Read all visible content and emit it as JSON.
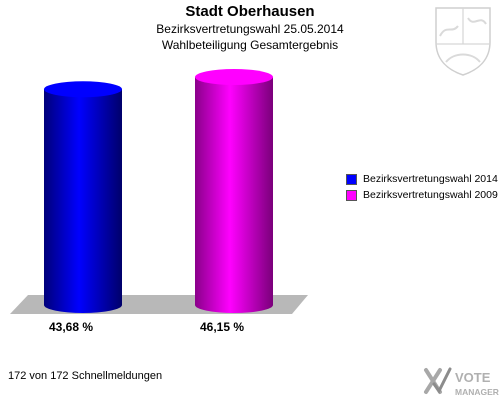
{
  "header": {
    "title": "Stadt Oberhausen",
    "subtitle": "Bezirksvertretungswahl 25.05.2014",
    "subtitle2": "Wahlbeteiligung Gesamtergebnis"
  },
  "chart_data": {
    "type": "bar",
    "title": "Stadt Oberhausen",
    "categories": [
      "Bezirksvertretungswahl 2014",
      "Bezirksvertretungswahl 2009"
    ],
    "values": [
      43.68,
      46.15
    ],
    "value_labels": [
      "43,68 %",
      "46,15 %"
    ],
    "colors": [
      "#0000ff",
      "#ff00ff"
    ],
    "ylim": [
      0,
      50
    ],
    "grid": false,
    "legend": "right",
    "xlabel": "",
    "ylabel": ""
  },
  "legend": {
    "items": [
      {
        "label": "Bezirksvertretungswahl 2014",
        "color": "#0000ff"
      },
      {
        "label": "Bezirksvertretungswahl 2009",
        "color": "#ff00ff"
      }
    ]
  },
  "footer": {
    "text": "172 von 172 Schnellmeldungen"
  },
  "logo": {
    "icon": "crest-icon",
    "brand_line1": "VOTE",
    "brand_line2": "MANAGER",
    "brand_icon": "vote-manager-logo-icon"
  }
}
